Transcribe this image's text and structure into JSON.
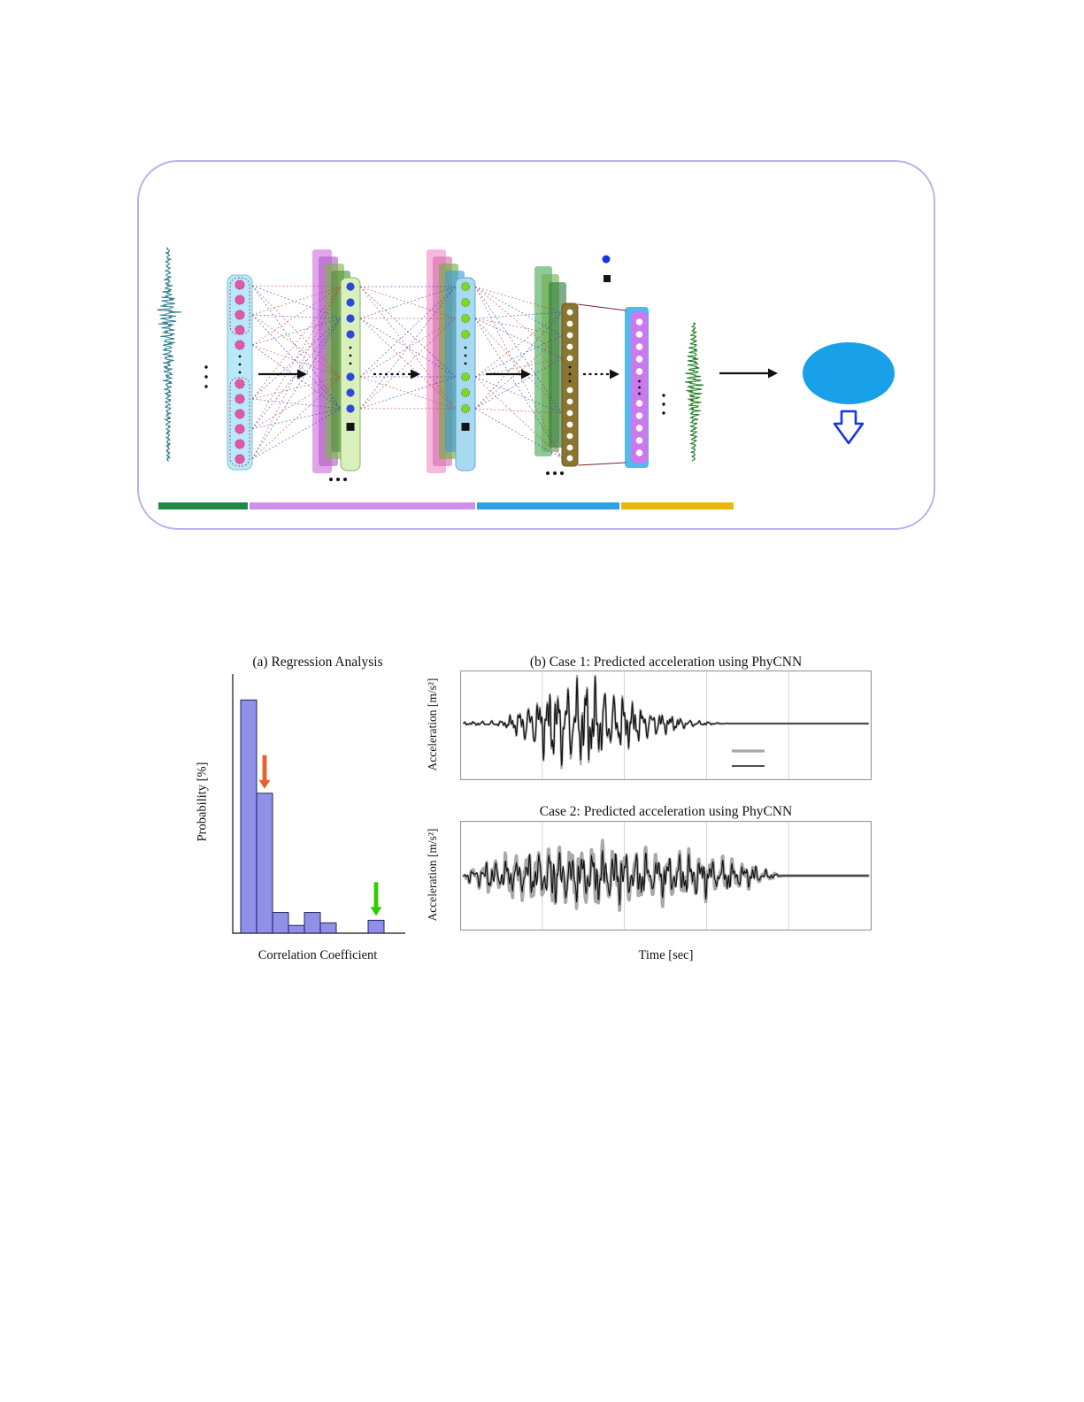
{
  "diagram": {
    "border_color": "#b7b3ef",
    "input_wave_color": "#2f7d8e",
    "output_wave_color": "#1e7a1e",
    "ellipse_color": "#18a0e8",
    "down_arrow_color": "#1636e3",
    "legend": {
      "dot_color": "#1636e3",
      "square_color": "#141414"
    },
    "connection_colors": [
      "#c23d2e",
      "#2b3cc2"
    ],
    "dense_link_color": "#7a2030",
    "layers": {
      "input_column": {
        "bg": "#b9e9f8",
        "border": "#6fc4e2",
        "dot_color": "#e058a8",
        "dot_ring": "#b03080",
        "group_outline": "#d04040"
      },
      "stage1": {
        "sheets": [
          "#cf6ee0",
          "#b05cc8",
          "#7ab648",
          "#4f8f35"
        ],
        "column_bg": "#d9f0bd",
        "column_border": "#86b06a",
        "dot_color": "#2a4bd8",
        "square_color": "#141414"
      },
      "stage2": {
        "sheets": [
          "#f08cc8",
          "#d86cb0",
          "#6cb03c",
          "#3e9ad8"
        ],
        "column_bg": "#a9d9f2",
        "column_border": "#5aa8d0",
        "dot_color": "#7cd82a",
        "dot_ring": "#4a9e12",
        "square_color": "#141414"
      },
      "stage3": {
        "sheets": [
          "#49a858",
          "#6fae4a",
          "#2f7a3e"
        ],
        "column_bg": "#8a7430",
        "column_border": "#6a5820",
        "dot_color": "#ffffff"
      },
      "stage4": {
        "back": "#52b9ee",
        "front": "#cb79ec",
        "dot_color": "#ffffff"
      }
    },
    "flow_arrow_color": "#111111",
    "bottom_bar_segments": [
      {
        "name": "input-span",
        "color": "#1d8a47"
      },
      {
        "name": "conv-span",
        "color": "#d08fe8"
      },
      {
        "name": "dense-span",
        "color": "#2ba2e8"
      },
      {
        "name": "output-span",
        "color": "#e8b70a"
      }
    ],
    "input_wave": {
      "seed": 3,
      "n": 420,
      "cycles": 52,
      "components": 3,
      "noise": 0.9,
      "envelope": [
        [
          0,
          0.18
        ],
        [
          0.18,
          0.35
        ],
        [
          0.3,
          1.0
        ],
        [
          0.5,
          0.55
        ],
        [
          0.75,
          0.3
        ],
        [
          1,
          0.15
        ]
      ]
    },
    "output_wave": {
      "seed": 8,
      "n": 320,
      "cycles": 34,
      "components": 3,
      "noise": 0.5,
      "envelope": [
        [
          0,
          0.15
        ],
        [
          0.2,
          0.5
        ],
        [
          0.45,
          1.0
        ],
        [
          0.7,
          0.45
        ],
        [
          1,
          0.18
        ]
      ]
    }
  },
  "figure": {
    "panel_a": {
      "title": "(a) Regression Analysis",
      "ylabel": "Probability [%]",
      "xlabel": "Correlation Coefficient"
    },
    "panel_b": {
      "case1_title": "(b) Case 1: Predicted acceleration using PhyCNN",
      "case2_title": "Case 2: Predicted acceleration using PhyCNN",
      "ylabel": "Acceleration [m/s²]",
      "xlabel": "Time [sec]"
    }
  },
  "chart_data": [
    {
      "type": "bar",
      "title": "(a) Regression Analysis",
      "xlabel": "Correlation Coefficient",
      "ylabel": "Probability [%]",
      "ylim": [
        0,
        50
      ],
      "bar_color": "#7b7ce3",
      "tick_labels_visible": false,
      "values": [
        45,
        27,
        4,
        1.5,
        4,
        2,
        0,
        0,
        2.5,
        0
      ],
      "annotations": [
        {
          "type": "down-arrow",
          "color": "#e85f2a",
          "bin": 1
        },
        {
          "type": "down-arrow",
          "color": "#2ecc00",
          "bin": 8
        }
      ]
    },
    {
      "type": "line",
      "title": "(b) Case 1: Predicted acceleration using PhyCNN",
      "ylabel": "Acceleration [m/s²]",
      "x_divisions": 5,
      "grid": true,
      "legend": {
        "entries": [
          "thick gray line",
          "thin black line"
        ],
        "labels_visible": false
      },
      "series": [
        {
          "name": "reference (thick gray)",
          "color": "#a8a8a8",
          "width": 2.4
        },
        {
          "name": "PhyCNN prediction (thin black)",
          "color": "#141414",
          "width": 1.2
        }
      ],
      "mismatch": 0.07,
      "signal": {
        "seed": 11,
        "n": 760,
        "cycles": 46,
        "components": 4,
        "noise": 0.25,
        "envelope": [
          [
            0,
            0.03
          ],
          [
            0.1,
            0.07
          ],
          [
            0.16,
            0.45
          ],
          [
            0.22,
            0.8
          ],
          [
            0.27,
            1.0
          ],
          [
            0.34,
            0.8
          ],
          [
            0.42,
            0.45
          ],
          [
            0.5,
            0.2
          ],
          [
            0.57,
            0.07
          ],
          [
            0.62,
            0.02
          ],
          [
            0.66,
            0.0
          ],
          [
            1,
            0.0
          ]
        ]
      }
    },
    {
      "type": "line",
      "title": "Case 2: Predicted acceleration using PhyCNN",
      "xlabel": "Time [sec]",
      "ylabel": "Acceleration [m/s²]",
      "x_divisions": 5,
      "grid": true,
      "series": [
        {
          "name": "reference (thick gray)",
          "color": "#a8a8a8",
          "width": 3.6
        },
        {
          "name": "PhyCNN prediction (thin black)",
          "color": "#141414",
          "width": 1.2
        }
      ],
      "mismatch": 0.32,
      "signal": {
        "seed": 23,
        "n": 760,
        "cycles": 40,
        "components": 4,
        "noise": 0.3,
        "envelope": [
          [
            0,
            0.12
          ],
          [
            0.06,
            0.5
          ],
          [
            0.18,
            0.85
          ],
          [
            0.3,
            1.0
          ],
          [
            0.45,
            0.8
          ],
          [
            0.6,
            0.65
          ],
          [
            0.7,
            0.4
          ],
          [
            0.76,
            0.12
          ],
          [
            0.79,
            0.0
          ],
          [
            1,
            0.0
          ]
        ]
      }
    }
  ]
}
